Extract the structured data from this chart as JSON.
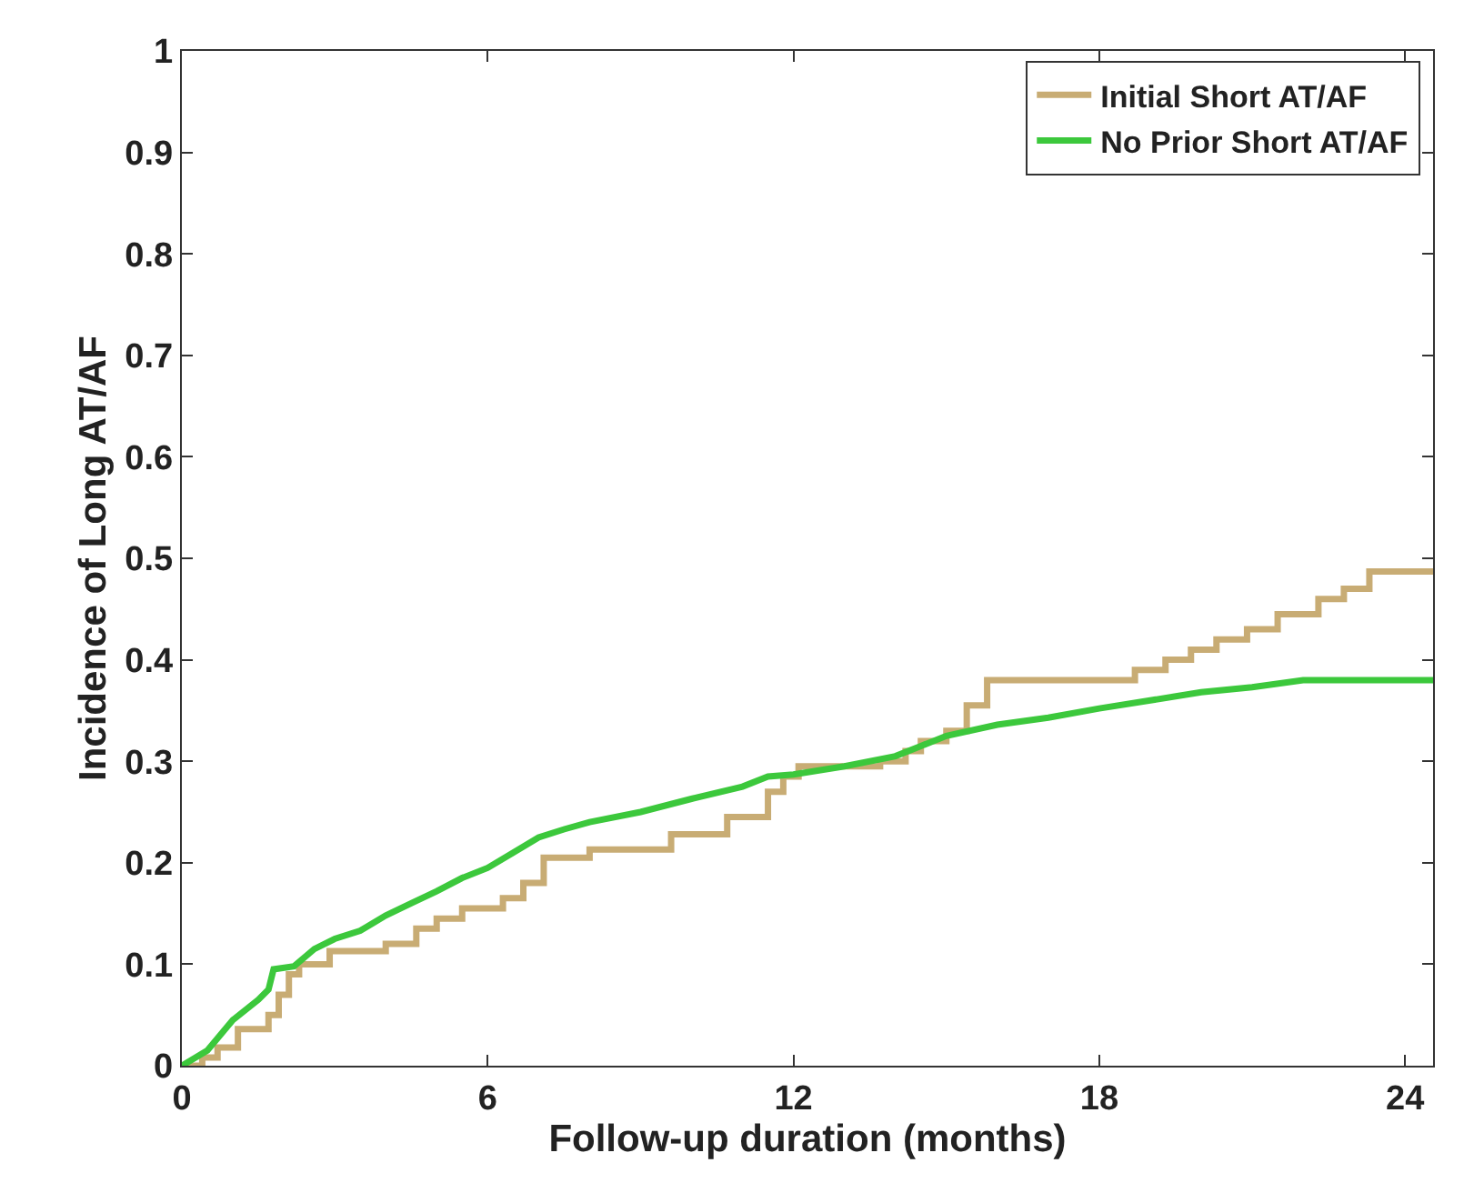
{
  "chart_data": {
    "type": "step",
    "xlabel": "Follow-up duration (months)",
    "ylabel": "Incidence of Long AT/AF",
    "xlim": [
      0,
      24.55
    ],
    "xticks": [
      0,
      6,
      12,
      18,
      24
    ],
    "ylim": [
      0,
      1
    ],
    "yticks": [
      0,
      0.1,
      0.2,
      0.3,
      0.4,
      0.5,
      0.6,
      0.7,
      0.8,
      0.9,
      1
    ],
    "grid": false,
    "legend": "top right",
    "marker": "none",
    "line_style": "solid",
    "series": [
      {
        "name": "Initial Short AT/AF",
        "color": "#c8ac74",
        "x": [
          0,
          0.4,
          0.7,
          1.1,
          1.7,
          1.9,
          2.1,
          2.3,
          2.9,
          4.0,
          4.6,
          5.0,
          5.5,
          6.3,
          6.7,
          7.1,
          8.0,
          9.6,
          10.7,
          11.5,
          11.8,
          12.1,
          13.7,
          14.2,
          14.5,
          15.0,
          15.4,
          15.8,
          18.7,
          19.3,
          19.8,
          20.3,
          20.9,
          21.5,
          22.3,
          22.8,
          23.3,
          24.55
        ],
        "values": [
          0,
          0.008,
          0.018,
          0.036,
          0.05,
          0.07,
          0.09,
          0.1,
          0.113,
          0.12,
          0.135,
          0.145,
          0.155,
          0.165,
          0.18,
          0.205,
          0.213,
          0.228,
          0.245,
          0.27,
          0.285,
          0.295,
          0.3,
          0.31,
          0.32,
          0.33,
          0.355,
          0.38,
          0.39,
          0.4,
          0.41,
          0.42,
          0.43,
          0.445,
          0.46,
          0.47,
          0.487,
          0.487
        ]
      },
      {
        "name": "No Prior Short AT/AF",
        "color": "#3cc83c",
        "type": "line",
        "x": [
          0,
          0.5,
          1.0,
          1.5,
          1.7,
          1.8,
          2.2,
          2.6,
          3.0,
          3.5,
          4.0,
          4.5,
          5.0,
          5.5,
          6.0,
          6.5,
          7.0,
          7.5,
          8.0,
          9.0,
          10.0,
          11.0,
          11.5,
          12.0,
          13.0,
          14.0,
          14.5,
          15.0,
          16.0,
          17.0,
          18.0,
          19.0,
          20.0,
          21.0,
          22.0,
          24.55
        ],
        "values": [
          0,
          0.015,
          0.045,
          0.065,
          0.075,
          0.095,
          0.098,
          0.115,
          0.125,
          0.133,
          0.148,
          0.16,
          0.172,
          0.185,
          0.195,
          0.21,
          0.225,
          0.233,
          0.24,
          0.25,
          0.263,
          0.275,
          0.285,
          0.287,
          0.295,
          0.305,
          0.315,
          0.325,
          0.336,
          0.343,
          0.352,
          0.36,
          0.368,
          0.373,
          0.38,
          0.38
        ]
      }
    ]
  }
}
